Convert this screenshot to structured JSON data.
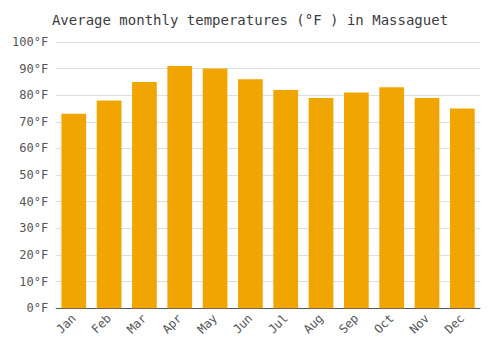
{
  "chart_data": {
    "type": "bar",
    "title": "Average monthly temperatures (°F ) in Massaguet",
    "categories": [
      "Jan",
      "Feb",
      "Mar",
      "Apr",
      "May",
      "Jun",
      "Jul",
      "Aug",
      "Sep",
      "Oct",
      "Nov",
      "Dec"
    ],
    "values": [
      73,
      78,
      85,
      91,
      90,
      86,
      82,
      79,
      81,
      83,
      79,
      75
    ],
    "color": "#F0A500",
    "ylim": [
      0,
      100
    ],
    "yticks": [
      {
        "value": 0,
        "label": "0°F"
      },
      {
        "value": 10,
        "label": "10°F"
      },
      {
        "value": 20,
        "label": "20°F"
      },
      {
        "value": 30,
        "label": "30°F"
      },
      {
        "value": 40,
        "label": "40°F"
      },
      {
        "value": 50,
        "label": "50°F"
      },
      {
        "value": 60,
        "label": "60°F"
      },
      {
        "value": 70,
        "label": "70°F"
      },
      {
        "value": 80,
        "label": "80°F"
      },
      {
        "value": 90,
        "label": "90°F"
      },
      {
        "value": 100,
        "label": "100°F"
      }
    ],
    "grid": true
  }
}
